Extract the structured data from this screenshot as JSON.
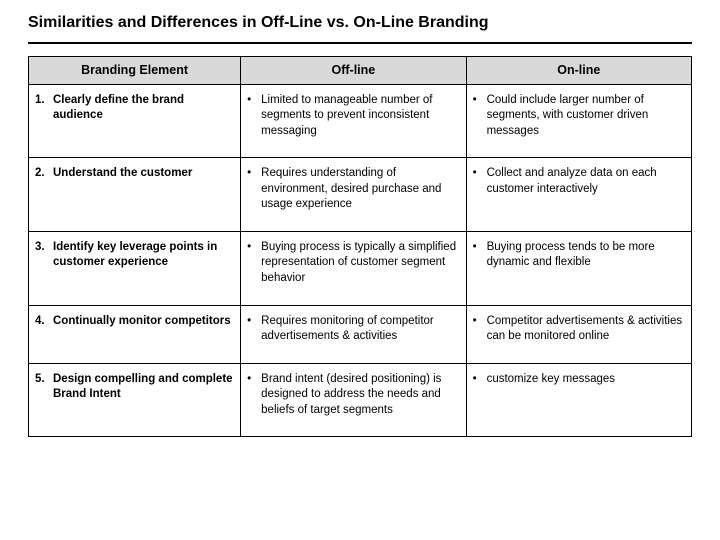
{
  "title": "Similarities and Differences in Off-Line vs. On-Line Branding",
  "headers": {
    "col1": "Branding Element",
    "col2": "Off-line",
    "col3": "On-line"
  },
  "rows": [
    {
      "num": "1.",
      "element": "Clearly define the brand audience",
      "offline": "Limited to manageable number of segments to prevent inconsistent messaging",
      "online": "Could include larger number of segments, with customer driven messages"
    },
    {
      "num": "2.",
      "element": "Understand the customer",
      "offline": "Requires understanding of environment, desired purchase and usage experience",
      "online": "Collect and analyze data on each customer interactively"
    },
    {
      "num": "3.",
      "element": "Identify key leverage points in customer experience",
      "offline": "Buying process is typically a simplified representation of customer segment behavior",
      "online": "Buying process tends to be more dynamic and flexible"
    },
    {
      "num": "4.",
      "element": "Continually monitor competitors",
      "offline": "Requires monitoring of competitor advertisements & activities",
      "online": "Competitor advertisements & activities can be monitored online"
    },
    {
      "num": "5.",
      "element": "Design compelling and complete Brand Intent",
      "offline": "Brand intent (desired positioning) is designed to address the needs and beliefs of target segments",
      "online": "customize key messages"
    }
  ],
  "colors": {
    "header_bg": "#d9d9d9",
    "border": "#000000",
    "text": "#000000",
    "background": "#ffffff"
  }
}
